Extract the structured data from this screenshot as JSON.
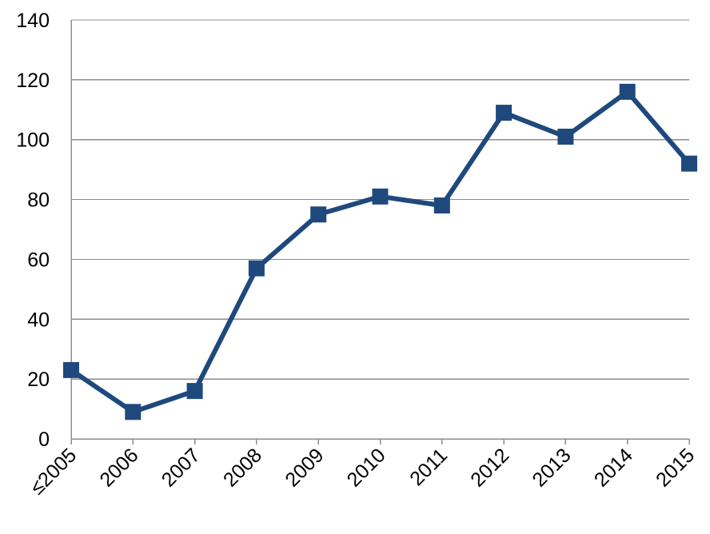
{
  "chart_data": {
    "type": "line",
    "title": "",
    "xlabel": "",
    "ylabel": "",
    "categories": [
      "≤2005",
      "2006",
      "2007",
      "2008",
      "2009",
      "2010",
      "2011",
      "2012",
      "2013",
      "2014",
      "2015"
    ],
    "series": [
      {
        "values": [
          23,
          9,
          16,
          57,
          75,
          81,
          78,
          109,
          101,
          116,
          92
        ],
        "color": "#1f497d",
        "marker": "square"
      }
    ],
    "ylim": [
      0,
      140
    ],
    "yticks": [
      0,
      20,
      40,
      60,
      80,
      100,
      120,
      140
    ],
    "grid": "horizontal",
    "legend": "none"
  }
}
